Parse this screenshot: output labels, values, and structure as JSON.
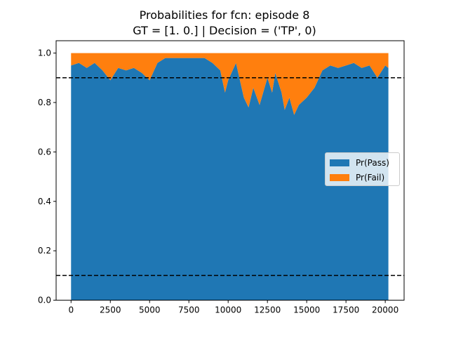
{
  "title_line1": "Probabilities for fcn: episode 8",
  "title_line2": "GT = [1. 0.] | Decision = ('TP', 0)",
  "colors": {
    "pass": "#1f77b4",
    "fail": "#ff7f0e",
    "threshold": "#000000"
  },
  "chart_data": {
    "type": "area",
    "stacked": true,
    "title": "Probabilities for fcn: episode 8\nGT = [1. 0.] | Decision = ('TP', 0)",
    "xlabel": "",
    "ylabel": "",
    "xlim": [
      -950,
      21200
    ],
    "ylim": [
      0.0,
      1.05
    ],
    "x_ticks": [
      0,
      2500,
      5000,
      7500,
      10000,
      12500,
      15000,
      17500,
      20000
    ],
    "y_ticks": [
      0.0,
      0.2,
      0.4,
      0.6,
      0.8,
      1.0
    ],
    "x_tick_labels": [
      "0",
      "2500",
      "5000",
      "7500",
      "10000",
      "12500",
      "15000",
      "17500",
      "20000"
    ],
    "y_tick_labels": [
      "0.0",
      "0.2",
      "0.4",
      "0.6",
      "0.8",
      "1.0"
    ],
    "grid": false,
    "legend_position": "center-right",
    "hlines": [
      0.9,
      0.1
    ],
    "hline_style": "dashed",
    "x": [
      0,
      500,
      1000,
      1500,
      2000,
      2500,
      3000,
      3500,
      4000,
      4500,
      5000,
      5500,
      6000,
      6500,
      7000,
      7500,
      8000,
      8500,
      9000,
      9500,
      9800,
      10000,
      10500,
      11000,
      11300,
      11600,
      12000,
      12500,
      12800,
      13000,
      13400,
      13600,
      13900,
      14200,
      14500,
      15000,
      15500,
      16000,
      16500,
      17000,
      17500,
      18000,
      18500,
      19000,
      19500,
      20000,
      20200
    ],
    "series": [
      {
        "name": "Pr(Pass)",
        "values": [
          0.95,
          0.96,
          0.94,
          0.96,
          0.93,
          0.89,
          0.94,
          0.93,
          0.94,
          0.92,
          0.89,
          0.96,
          0.98,
          0.98,
          0.98,
          0.98,
          0.98,
          0.98,
          0.96,
          0.93,
          0.84,
          0.89,
          0.96,
          0.82,
          0.78,
          0.86,
          0.79,
          0.9,
          0.84,
          0.92,
          0.84,
          0.77,
          0.82,
          0.75,
          0.79,
          0.82,
          0.86,
          0.93,
          0.95,
          0.94,
          0.95,
          0.96,
          0.94,
          0.95,
          0.9,
          0.95,
          0.94
        ]
      },
      {
        "name": "Pr(Fail)",
        "values": [
          0.05,
          0.04,
          0.06,
          0.04,
          0.07,
          0.11,
          0.06,
          0.07,
          0.06,
          0.08,
          0.11,
          0.04,
          0.02,
          0.02,
          0.02,
          0.02,
          0.02,
          0.02,
          0.04,
          0.07,
          0.16,
          0.11,
          0.04,
          0.18,
          0.22,
          0.14,
          0.21,
          0.1,
          0.16,
          0.08,
          0.16,
          0.23,
          0.18,
          0.25,
          0.21,
          0.18,
          0.14,
          0.07,
          0.05,
          0.06,
          0.05,
          0.04,
          0.06,
          0.05,
          0.1,
          0.05,
          0.06
        ]
      }
    ]
  }
}
